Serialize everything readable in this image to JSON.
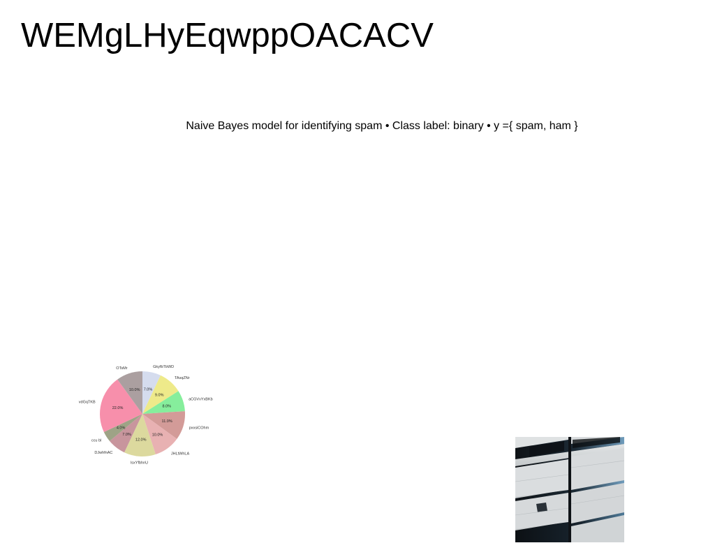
{
  "page": {
    "title": "WEMgLHyEqwppOACACV",
    "subtitle": "Naive Bayes model for identifying spam • Class label: binary • y ={ spam, ham }"
  },
  "chart_data": {
    "type": "pie",
    "title": "",
    "start_angle_deg": 90,
    "direction": "clockwise",
    "slices": [
      {
        "label": "GkyfbTbWD",
        "value": 7.0,
        "pct_label": "7.0%",
        "color": "#d5dcee"
      },
      {
        "label": "TAsqZNr",
        "value": 9.0,
        "pct_label": "9.0%",
        "color": "#eeea8a"
      },
      {
        "label": "aCGVvYxBKb",
        "value": 8.0,
        "pct_label": "8.0%",
        "color": "#86ee9c"
      },
      {
        "label": "pxxsiCOhm",
        "value": 11.0,
        "pct_label": "11.0%",
        "color": "#d39b98"
      },
      {
        "label": "JHLtWhLA",
        "value": 10.0,
        "pct_label": "10.0%",
        "color": "#e8b1b2"
      },
      {
        "label": "lsxYfbhnU",
        "value": 12.0,
        "pct_label": "12.0%",
        "color": "#dcd99e"
      },
      {
        "label": "DJwhfnAC",
        "value": 7.0,
        "pct_label": "7.0%",
        "color": "#c8959d"
      },
      {
        "label": "ccu bl",
        "value": 4.0,
        "pct_label": "4.0%",
        "color": "#9ea386"
      },
      {
        "label": "vdGqTKB",
        "value": 22.0,
        "pct_label": "22.0%",
        "color": "#f78fab"
      },
      {
        "label": "OTsMr",
        "value": 10.0,
        "pct_label": "10.0%",
        "color": "#ab9fa0"
      }
    ]
  },
  "photo": {
    "subject": "building-facade-photo",
    "colors": {
      "panel": "#d9dcdd",
      "window_dark": "#12161b",
      "window_glow": "#5a8aa8"
    }
  }
}
